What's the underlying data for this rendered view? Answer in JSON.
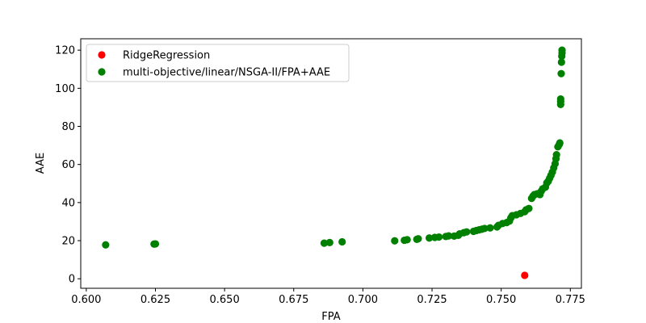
{
  "chart_data": {
    "type": "scatter",
    "title": "",
    "xlabel": "FPA",
    "ylabel": "AAE",
    "xlim": [
      0.598,
      0.779
    ],
    "ylim": [
      -5,
      126
    ],
    "x_ticks": [
      0.6,
      0.625,
      0.65,
      0.675,
      0.7,
      0.725,
      0.75,
      0.775
    ],
    "x_tick_labels": [
      "0.600",
      "0.625",
      "0.650",
      "0.675",
      "0.700",
      "0.725",
      "0.750",
      "0.775"
    ],
    "y_ticks": [
      0,
      20,
      40,
      60,
      80,
      100,
      120
    ],
    "y_tick_labels": [
      "0",
      "20",
      "40",
      "60",
      "80",
      "100",
      "120"
    ],
    "grid": false,
    "legend_position": "top-left",
    "series": [
      {
        "name": "RidgeRegression",
        "color": "#ff0000",
        "points": [
          [
            0.7585,
            1.8
          ]
        ]
      },
      {
        "name": "multi-objective/linear/NSGA-II/FPA+AAE",
        "color": "#008000",
        "points": [
          [
            0.607,
            17.8
          ],
          [
            0.6245,
            18.2
          ],
          [
            0.625,
            18.3
          ],
          [
            0.686,
            18.7
          ],
          [
            0.688,
            19.0
          ],
          [
            0.6925,
            19.4
          ],
          [
            0.7115,
            19.9
          ],
          [
            0.715,
            20.2
          ],
          [
            0.716,
            20.5
          ],
          [
            0.7195,
            20.7
          ],
          [
            0.72,
            21.0
          ],
          [
            0.724,
            21.4
          ],
          [
            0.726,
            21.7
          ],
          [
            0.7275,
            21.9
          ],
          [
            0.73,
            22.2
          ],
          [
            0.731,
            22.5
          ],
          [
            0.733,
            22.4
          ],
          [
            0.7345,
            22.8
          ],
          [
            0.735,
            23.6
          ],
          [
            0.7365,
            24.2
          ],
          [
            0.7375,
            24.6
          ],
          [
            0.74,
            24.9
          ],
          [
            0.741,
            25.3
          ],
          [
            0.742,
            25.7
          ],
          [
            0.743,
            26.0
          ],
          [
            0.744,
            26.4
          ],
          [
            0.746,
            26.7
          ],
          [
            0.7485,
            27.2
          ],
          [
            0.749,
            28.0
          ],
          [
            0.7505,
            29.0
          ],
          [
            0.752,
            29.5
          ],
          [
            0.753,
            30.3
          ],
          [
            0.7535,
            32.0
          ],
          [
            0.754,
            33.1
          ],
          [
            0.7555,
            33.6
          ],
          [
            0.757,
            34.3
          ],
          [
            0.7585,
            35.2
          ],
          [
            0.759,
            36.2
          ],
          [
            0.76,
            36.9
          ],
          [
            0.761,
            42.2
          ],
          [
            0.7615,
            43.4
          ],
          [
            0.762,
            44.2
          ],
          [
            0.763,
            44.6
          ],
          [
            0.764,
            44.2
          ],
          [
            0.7645,
            46.0
          ],
          [
            0.765,
            47.2
          ],
          [
            0.766,
            48.1
          ],
          [
            0.7665,
            50.3
          ],
          [
            0.767,
            51.2
          ],
          [
            0.7675,
            52.7
          ],
          [
            0.768,
            54.3
          ],
          [
            0.7685,
            56.0
          ],
          [
            0.769,
            58.2
          ],
          [
            0.7695,
            60.4
          ],
          [
            0.7698,
            63.0
          ],
          [
            0.77,
            65.1
          ],
          [
            0.7705,
            69.3
          ],
          [
            0.771,
            70.5
          ],
          [
            0.7712,
            71.3
          ],
          [
            0.7715,
            91.5
          ],
          [
            0.7715,
            93.1
          ],
          [
            0.7715,
            94.4
          ],
          [
            0.7717,
            107.7
          ],
          [
            0.7718,
            113.7
          ],
          [
            0.7719,
            116.9
          ],
          [
            0.772,
            118.6
          ],
          [
            0.772,
            120.0
          ]
        ]
      }
    ]
  }
}
